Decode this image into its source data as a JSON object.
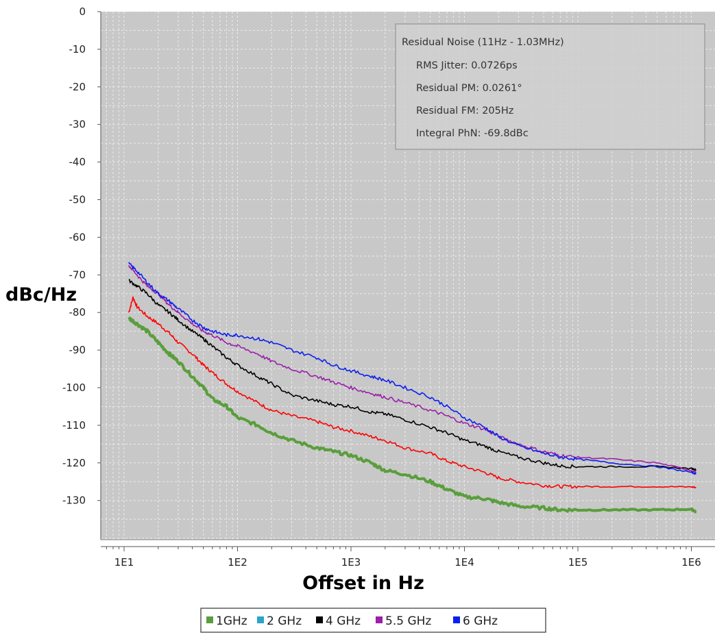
{
  "chart_data": {
    "type": "line",
    "title": "",
    "xlabel": "Offset in Hz",
    "ylabel": "dBc/Hz",
    "x_scale": "log",
    "xlim": [
      7,
      1300000
    ],
    "ylim": [
      -140,
      0
    ],
    "x_ticks": [
      {
        "value": 10,
        "label": "1E1"
      },
      {
        "value": 100,
        "label": "1E2"
      },
      {
        "value": 1000,
        "label": "1E3"
      },
      {
        "value": 10000,
        "label": "1E4"
      },
      {
        "value": 100000,
        "label": "1E5"
      },
      {
        "value": 1000000,
        "label": "1E6"
      }
    ],
    "y_ticks": [
      {
        "value": 0,
        "label": "0"
      },
      {
        "value": -10,
        "label": "-10"
      },
      {
        "value": -20,
        "label": "-20"
      },
      {
        "value": -30,
        "label": "-30"
      },
      {
        "value": -40,
        "label": "-40"
      },
      {
        "value": -50,
        "label": "-50"
      },
      {
        "value": -60,
        "label": "-60"
      },
      {
        "value": -70,
        "label": "-70"
      },
      {
        "value": -80,
        "label": "-80"
      },
      {
        "value": -90,
        "label": "-90"
      },
      {
        "value": -100,
        "label": "-100"
      },
      {
        "value": -110,
        "label": "-110"
      },
      {
        "value": -120,
        "label": "-120"
      },
      {
        "value": -130,
        "label": "-130"
      }
    ],
    "grid": true,
    "background_color": "#c8c8c8",
    "legend_position": "bottom-center",
    "series": [
      {
        "name": "1GHz",
        "color": "#5a9e3c",
        "line_width": 4,
        "x": [
          11,
          13,
          16,
          20,
          25,
          30,
          40,
          50,
          60,
          80,
          100,
          150,
          200,
          300,
          500,
          700,
          1000,
          1500,
          2000,
          3000,
          5000,
          7000,
          10000,
          15000,
          20000,
          30000,
          50000,
          70000,
          100000,
          200000,
          500000,
          1000000,
          1100000
        ],
        "y": [
          -81.5,
          -83,
          -85,
          -88,
          -91,
          -93,
          -97,
          -100,
          -103,
          -105,
          -108,
          -110,
          -112,
          -114,
          -116,
          -117,
          -118,
          -120,
          -122,
          -123,
          -125,
          -127,
          -129,
          -129.5,
          -130.5,
          -131.5,
          -132,
          -132.5,
          -132.5,
          -132.5,
          -132.5,
          -132.3,
          -133
        ]
      },
      {
        "name": "2 GHz",
        "color": "#2aa4c8",
        "x": [],
        "y": []
      },
      {
        "name": "4 GHz",
        "color": "#000000",
        "x": [
          11,
          13,
          16,
          20,
          25,
          30,
          40,
          50,
          60,
          80,
          100,
          150,
          200,
          300,
          500,
          700,
          1000,
          1500,
          2000,
          3000,
          5000,
          7000,
          10000,
          15000,
          20000,
          30000,
          50000,
          70000,
          100000,
          200000,
          500000,
          1000000,
          1100000
        ],
        "y": [
          -71.5,
          -73,
          -75,
          -78,
          -80,
          -82,
          -85,
          -87,
          -89,
          -92,
          -94,
          -97,
          -99,
          -102,
          -103.5,
          -104.5,
          -105,
          -106.5,
          -107,
          -108.5,
          -110.5,
          -112,
          -114,
          -115.5,
          -117,
          -118.5,
          -120,
          -120.8,
          -121,
          -121,
          -121,
          -121.5,
          -121.8
        ]
      },
      {
        "name": "5.5 GHz",
        "color": "#9b1fa8",
        "x": [
          11,
          13,
          16,
          20,
          25,
          30,
          40,
          50,
          60,
          80,
          100,
          150,
          200,
          300,
          500,
          700,
          1000,
          1500,
          2000,
          3000,
          5000,
          7000,
          10000,
          15000,
          20000,
          30000,
          50000,
          70000,
          100000,
          200000,
          500000,
          1000000,
          1100000
        ],
        "y": [
          -67.5,
          -70,
          -73,
          -75,
          -78,
          -80,
          -83,
          -85,
          -86,
          -88,
          -89,
          -91,
          -93,
          -95,
          -97,
          -98.5,
          -100,
          -101.5,
          -102.5,
          -104,
          -106,
          -107.5,
          -109.5,
          -111,
          -113,
          -115,
          -117,
          -118,
          -118.5,
          -119,
          -120,
          -122,
          -122.5
        ]
      },
      {
        "name": "6 GHz",
        "color": "#0a1ef0",
        "x": [
          11,
          13,
          16,
          20,
          25,
          30,
          40,
          50,
          60,
          80,
          100,
          150,
          200,
          300,
          500,
          700,
          1000,
          1500,
          2000,
          3000,
          5000,
          7000,
          10000,
          15000,
          20000,
          30000,
          50000,
          70000,
          100000,
          200000,
          500000,
          1000000,
          1100000
        ],
        "y": [
          -67,
          -69,
          -72,
          -75,
          -77,
          -79,
          -82,
          -84,
          -85,
          -86,
          -86,
          -87,
          -88,
          -90,
          -92,
          -94,
          -95.5,
          -97,
          -98,
          -100,
          -102.5,
          -105,
          -108,
          -110.5,
          -113,
          -115.5,
          -117.5,
          -118.5,
          -119,
          -120,
          -121,
          -122.5,
          -123
        ]
      },
      {
        "name": "",
        "color": "#ff0000",
        "x": [
          11,
          12,
          13,
          16,
          20,
          25,
          30,
          40,
          50,
          60,
          80,
          100,
          150,
          200,
          300,
          500,
          700,
          1000,
          1500,
          2000,
          3000,
          5000,
          7000,
          10000,
          15000,
          20000,
          30000,
          50000,
          70000,
          100000,
          200000,
          500000,
          1000000,
          1100000
        ],
        "y": [
          -80,
          -76,
          -78.5,
          -81,
          -83,
          -85.5,
          -88,
          -91,
          -94,
          -96,
          -99,
          -101,
          -104,
          -106,
          -107.5,
          -109,
          -110.5,
          -111.5,
          -113,
          -114,
          -116,
          -117.5,
          -119.5,
          -121,
          -122.5,
          -124,
          -125,
          -126,
          -126.3,
          -126.3,
          -126.3,
          -126.3,
          -126.4,
          -126.5
        ]
      }
    ],
    "info_box": {
      "title": "Residual Noise (11Hz - 1.03MHz)",
      "lines": [
        "RMS Jitter: 0.0726ps",
        "Residual PM: 0.0261°",
        "Residual FM: 205Hz",
        "Integral PhN: -69.8dBc"
      ]
    },
    "legend": [
      {
        "label": "1GHz",
        "color": "#5a9e3c"
      },
      {
        "label": "2 GHz",
        "color": "#2aa4c8"
      },
      {
        "label": "4 GHz",
        "color": "#000000"
      },
      {
        "label": "5.5 GHz",
        "color": "#9b1fa8"
      },
      {
        "label": "6 GHz",
        "color": "#0a1ef0"
      }
    ]
  }
}
